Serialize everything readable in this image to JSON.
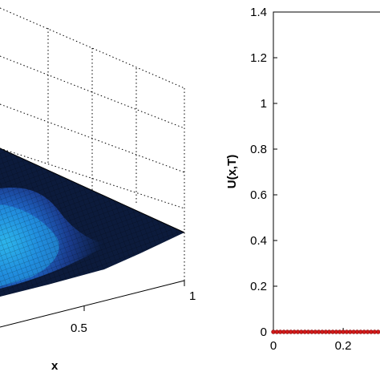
{
  "chart_data": [
    {
      "type": "surface",
      "title": "",
      "xlabel": "x",
      "x_tick_labels": [
        "0.5",
        "1"
      ],
      "colormap": [
        "#0b1a3a",
        "#1a3d8f",
        "#1f6fd1",
        "#23a6e8",
        "#39c7f0"
      ],
      "grid": true
    },
    {
      "type": "line",
      "title": "",
      "xlabel": "",
      "ylabel": "U(x,T)",
      "xlim": [
        0,
        0.31
      ],
      "ylim": [
        0,
        1.4
      ],
      "x_tick_labels": [
        "0",
        "0.2"
      ],
      "y_tick_labels": [
        "0",
        "0.2",
        "0.4",
        "0.6",
        "0.8",
        "1",
        "1.2",
        "1.4"
      ],
      "series": [
        {
          "marker_color": "#d11a1a",
          "x": [
            0,
            0.01,
            0.02,
            0.03,
            0.04,
            0.05,
            0.06,
            0.07,
            0.08,
            0.09,
            0.1,
            0.11,
            0.12,
            0.13,
            0.14,
            0.15,
            0.16,
            0.17,
            0.18,
            0.19,
            0.2,
            0.21,
            0.22,
            0.23,
            0.24,
            0.25,
            0.26,
            0.27,
            0.28,
            0.29,
            0.3
          ],
          "y": [
            0,
            0,
            0,
            0,
            0,
            0,
            0,
            0,
            0,
            0,
            0,
            0,
            0,
            0,
            0,
            0,
            0,
            0,
            0,
            0,
            0,
            0,
            0,
            0,
            0,
            0,
            0,
            0,
            0,
            0,
            0
          ]
        }
      ]
    }
  ]
}
